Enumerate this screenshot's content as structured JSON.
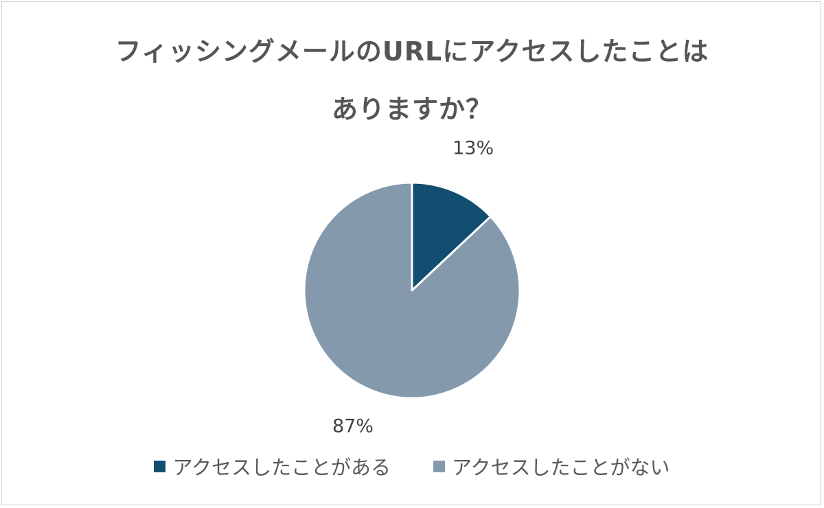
{
  "chart_data": {
    "type": "pie",
    "title_lines": [
      "フィッシングメールのURLにアクセスしたことは",
      "ありますか？"
    ],
    "slices": [
      {
        "name": "アクセスしたことがある",
        "value": 13,
        "label": "13%",
        "color": "#124e70"
      },
      {
        "name": "アクセスしたことがない",
        "value": 87,
        "label": "87%",
        "color": "#8599ad"
      }
    ],
    "legend_position": "bottom"
  }
}
